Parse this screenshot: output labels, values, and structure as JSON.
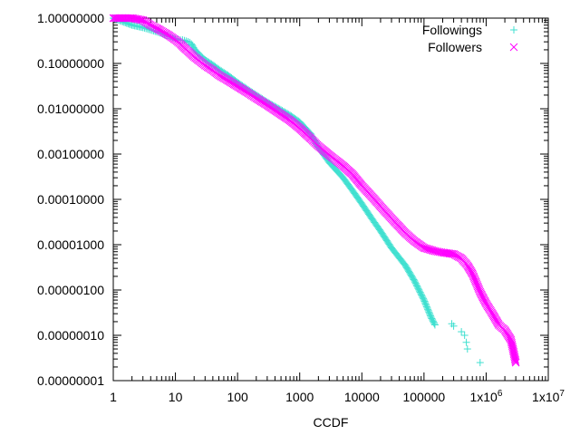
{
  "chart_data": {
    "type": "scatter",
    "title": "",
    "xlabel": "CCDF",
    "ylabel": "",
    "x_scale": "log",
    "y_scale": "log",
    "xlim": [
      1,
      10000000
    ],
    "ylim": [
      1e-08,
      1
    ],
    "grid": false,
    "legend_position": "top-right",
    "x_ticks": [
      {
        "value": 1,
        "label": "1"
      },
      {
        "value": 10,
        "label": "10"
      },
      {
        "value": 100,
        "label": "100"
      },
      {
        "value": 1000,
        "label": "1000"
      },
      {
        "value": 10000,
        "label": "10000"
      },
      {
        "value": 100000,
        "label": "100000"
      },
      {
        "value": 1000000,
        "label": "1x10",
        "sup": "6"
      },
      {
        "value": 10000000,
        "label": "1x10",
        "sup": "7"
      }
    ],
    "y_ticks": [
      {
        "value": 1,
        "label": "1.00000000"
      },
      {
        "value": 0.1,
        "label": "0.10000000"
      },
      {
        "value": 0.01,
        "label": "0.01000000"
      },
      {
        "value": 0.001,
        "label": "0.00100000"
      },
      {
        "value": 0.0001,
        "label": "0.00010000"
      },
      {
        "value": 1e-05,
        "label": "0.00001000"
      },
      {
        "value": 1e-06,
        "label": "0.00000100"
      },
      {
        "value": 1e-07,
        "label": "0.00000010"
      },
      {
        "value": 1e-08,
        "label": "0.00000001"
      }
    ],
    "series": [
      {
        "name": "Followings",
        "color": "#40e0d0",
        "marker": "plus",
        "points": [
          [
            1,
            1.0
          ],
          [
            2,
            0.7
          ],
          [
            3,
            0.62
          ],
          [
            4,
            0.55
          ],
          [
            5,
            0.5
          ],
          [
            6,
            0.46
          ],
          [
            7,
            0.42
          ],
          [
            8,
            0.39
          ],
          [
            9,
            0.37
          ],
          [
            10,
            0.35
          ],
          [
            11,
            0.34
          ],
          [
            12,
            0.33
          ],
          [
            13,
            0.33
          ],
          [
            14,
            0.32
          ],
          [
            15,
            0.31
          ],
          [
            16,
            0.3
          ],
          [
            17,
            0.29
          ],
          [
            18,
            0.27
          ],
          [
            19,
            0.24
          ],
          [
            20,
            0.21
          ],
          [
            25,
            0.15
          ],
          [
            30,
            0.12
          ],
          [
            40,
            0.093
          ],
          [
            50,
            0.074
          ],
          [
            70,
            0.055
          ],
          [
            100,
            0.038
          ],
          [
            150,
            0.026
          ],
          [
            200,
            0.02
          ],
          [
            300,
            0.014
          ],
          [
            500,
            0.0094
          ],
          [
            700,
            0.0072
          ],
          [
            1000,
            0.0051
          ],
          [
            1500,
            0.0028
          ],
          [
            2000,
            0.0014
          ],
          [
            3000,
            0.00065
          ],
          [
            5000,
            0.0003
          ],
          [
            7000,
            0.00016
          ],
          [
            10000,
            8e-05
          ],
          [
            15000,
            3.5e-05
          ],
          [
            20000,
            2e-05
          ],
          [
            30000,
            8.5e-06
          ],
          [
            50000,
            3.5e-06
          ],
          [
            70000,
            1.6e-06
          ],
          [
            100000,
            6e-07
          ],
          [
            130000,
            2.5e-07
          ],
          [
            150000,
            1.7e-07
          ],
          [
            280000,
            1.8e-07
          ],
          [
            300000,
            1.6e-07
          ],
          [
            400000,
            1.2e-07
          ],
          [
            450000,
            1e-07
          ],
          [
            480000,
            7e-08
          ],
          [
            500000,
            5e-08
          ],
          [
            800000,
            2.5e-08
          ]
        ]
      },
      {
        "name": "Followers",
        "color": "#ff00ff",
        "marker": "cross",
        "points": [
          [
            1,
            1.0
          ],
          [
            2,
            1.0
          ],
          [
            3,
            0.9
          ],
          [
            4,
            0.7
          ],
          [
            5,
            0.6
          ],
          [
            6,
            0.52
          ],
          [
            7,
            0.46
          ],
          [
            8,
            0.41
          ],
          [
            10,
            0.33
          ],
          [
            12,
            0.27
          ],
          [
            15,
            0.2
          ],
          [
            20,
            0.14
          ],
          [
            25,
            0.11
          ],
          [
            30,
            0.09
          ],
          [
            40,
            0.07
          ],
          [
            50,
            0.055
          ],
          [
            70,
            0.042
          ],
          [
            100,
            0.031
          ],
          [
            150,
            0.022
          ],
          [
            200,
            0.017
          ],
          [
            300,
            0.012
          ],
          [
            500,
            0.0075
          ],
          [
            700,
            0.0055
          ],
          [
            1000,
            0.0037
          ],
          [
            1500,
            0.0022
          ],
          [
            2000,
            0.0015
          ],
          [
            3000,
            0.00095
          ],
          [
            5000,
            0.00055
          ],
          [
            7000,
            0.00036
          ],
          [
            10000,
            0.0002
          ],
          [
            15000,
            0.00011
          ],
          [
            20000,
            7e-05
          ],
          [
            30000,
            3.8e-05
          ],
          [
            50000,
            1.8e-05
          ],
          [
            70000,
            1.2e-05
          ],
          [
            100000,
            8.5e-06
          ],
          [
            150000,
            7.2e-06
          ],
          [
            200000,
            6.7e-06
          ],
          [
            300000,
            6.2e-06
          ],
          [
            400000,
            5e-06
          ],
          [
            500000,
            3.5e-06
          ],
          [
            600000,
            2.3e-06
          ],
          [
            700000,
            1.4e-06
          ],
          [
            800000,
            9e-07
          ],
          [
            1000000,
            5e-07
          ],
          [
            1300000,
            2.8e-07
          ],
          [
            1600000,
            1.7e-07
          ],
          [
            2000000,
            1.3e-07
          ],
          [
            2500000,
            8e-08
          ],
          [
            2700000,
            5e-08
          ],
          [
            3000000,
            2.5e-08
          ]
        ]
      }
    ]
  }
}
